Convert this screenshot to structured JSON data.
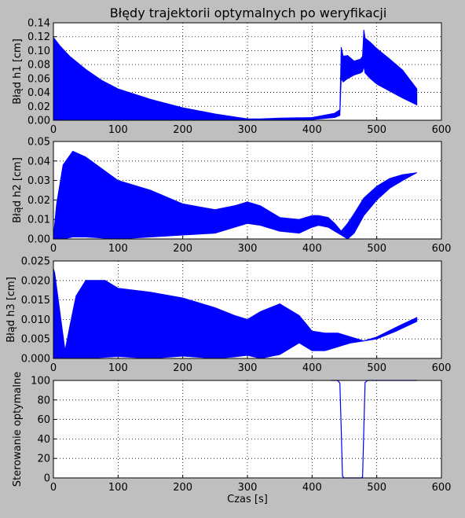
{
  "figure": {
    "title": "Błędy trajektorii optymalnych po weryfikacji",
    "background": "#bfbfbf",
    "series_color": "#0000ff"
  },
  "chart_data": [
    {
      "type": "area",
      "ylabel": "Błąd h1 [cm]",
      "xlabel": "",
      "xlim": [
        0,
        600
      ],
      "ylim": [
        0,
        0.14
      ],
      "xticks": [
        "0",
        "100",
        "200",
        "300",
        "400",
        "500",
        "600"
      ],
      "yticks": [
        "0.00",
        "0.02",
        "0.04",
        "0.06",
        "0.08",
        "0.10",
        "0.12",
        "0.14"
      ],
      "grid": true,
      "x": [
        0,
        10,
        25,
        50,
        75,
        100,
        150,
        200,
        250,
        300,
        320,
        350,
        400,
        435,
        443,
        445,
        448,
        455,
        465,
        475,
        478,
        480,
        482,
        490,
        500,
        520,
        540,
        562
      ],
      "upper": [
        0.119,
        0.107,
        0.092,
        0.073,
        0.057,
        0.045,
        0.03,
        0.018,
        0.009,
        0.002,
        0.002,
        0.003,
        0.004,
        0.01,
        0.015,
        0.105,
        0.092,
        0.093,
        0.085,
        0.088,
        0.092,
        0.13,
        0.118,
        0.112,
        0.103,
        0.088,
        0.072,
        0.045
      ],
      "lower": [
        0.001,
        0.001,
        0.001,
        0.001,
        0.001,
        0.001,
        0.001,
        0.001,
        0.001,
        0.001,
        0.001,
        0.001,
        0.001,
        0.004,
        0.007,
        0.06,
        0.055,
        0.06,
        0.065,
        0.068,
        0.07,
        0.078,
        0.068,
        0.06,
        0.052,
        0.042,
        0.032,
        0.022
      ]
    },
    {
      "type": "area",
      "ylabel": "Błąd h2 [cm]",
      "xlabel": "",
      "xlim": [
        0,
        600
      ],
      "ylim": [
        0,
        0.05
      ],
      "xticks": [
        "0",
        "100",
        "200",
        "300",
        "400",
        "500",
        "600"
      ],
      "yticks": [
        "0.00",
        "0.01",
        "0.02",
        "0.03",
        "0.04",
        "0.05"
      ],
      "grid": true,
      "x": [
        0,
        5,
        15,
        30,
        50,
        100,
        150,
        200,
        250,
        280,
        300,
        320,
        350,
        380,
        400,
        410,
        425,
        435,
        445,
        455,
        465,
        480,
        500,
        520,
        540,
        562
      ],
      "upper": [
        0.001,
        0.018,
        0.038,
        0.045,
        0.042,
        0.03,
        0.025,
        0.018,
        0.015,
        0.017,
        0.019,
        0.017,
        0.011,
        0.01,
        0.012,
        0.012,
        0.011,
        0.008,
        0.004,
        0.008,
        0.013,
        0.021,
        0.027,
        0.031,
        0.033,
        0.034
      ],
      "lower": [
        0.0,
        0.0,
        0.0,
        0.001,
        0.001,
        0.0,
        0.001,
        0.002,
        0.003,
        0.006,
        0.008,
        0.007,
        0.004,
        0.003,
        0.006,
        0.007,
        0.006,
        0.004,
        0.002,
        0.0,
        0.003,
        0.012,
        0.02,
        0.026,
        0.03,
        0.034
      ]
    },
    {
      "type": "area",
      "ylabel": "Błąd h3 [cm]",
      "xlabel": "",
      "xlim": [
        0,
        600
      ],
      "ylim": [
        0,
        0.025
      ],
      "xticks": [
        "0",
        "100",
        "200",
        "300",
        "400",
        "500",
        "600"
      ],
      "yticks": [
        "0.000",
        "0.005",
        "0.010",
        "0.015",
        "0.020",
        "0.025"
      ],
      "grid": true,
      "x": [
        0,
        2,
        10,
        18,
        25,
        35,
        50,
        80,
        100,
        150,
        200,
        250,
        280,
        300,
        320,
        350,
        380,
        400,
        420,
        440,
        460,
        480,
        500,
        530,
        562
      ],
      "upper": [
        0.023,
        0.022,
        0.012,
        0.002,
        0.008,
        0.016,
        0.02,
        0.02,
        0.018,
        0.017,
        0.0155,
        0.013,
        0.011,
        0.01,
        0.012,
        0.014,
        0.011,
        0.007,
        0.0065,
        0.0065,
        0.0055,
        0.0045,
        0.0055,
        0.008,
        0.0105
      ],
      "lower": [
        0.0,
        0.0,
        0.0,
        0.0,
        0.0,
        0.0,
        0.0,
        0.0003,
        0.0005,
        0.0,
        0.0006,
        0.0,
        0.0004,
        0.0008,
        0.0,
        0.001,
        0.004,
        0.002,
        0.002,
        0.003,
        0.004,
        0.0045,
        0.005,
        0.007,
        0.0095
      ]
    },
    {
      "type": "line",
      "ylabel": "Sterowanie optymalne",
      "xlabel": "Czas [s]",
      "xlim": [
        0,
        600
      ],
      "ylim": [
        0,
        100
      ],
      "xticks": [
        "0",
        "100",
        "200",
        "300",
        "400",
        "500",
        "600"
      ],
      "yticks": [
        "0",
        "20",
        "40",
        "60",
        "80",
        "100"
      ],
      "grid": true,
      "x": [
        430,
        439,
        441,
        443,
        445,
        447,
        449,
        476,
        478,
        480,
        482,
        484,
        486,
        562
      ],
      "y": [
        100,
        100,
        99,
        97,
        50,
        2,
        0,
        0,
        1,
        50,
        98,
        99,
        100,
        100
      ]
    }
  ]
}
